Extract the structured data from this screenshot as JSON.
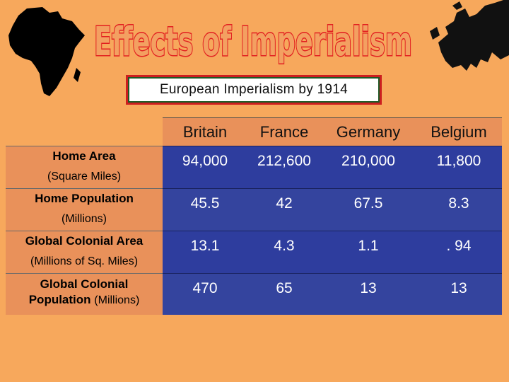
{
  "title": "Effects of Imperialism",
  "subtitle": "European Imperialism by 1914",
  "table": {
    "columns": [
      "Britain",
      "France",
      "Germany",
      "Belgium"
    ],
    "rows": [
      {
        "label_main": "Home Area",
        "label_sub": "(Square Miles)",
        "values": [
          "94,000",
          "212,600",
          "210,000",
          "11,800"
        ]
      },
      {
        "label_main": "Home Population",
        "label_sub": "(Millions)",
        "values": [
          "45.5",
          "42",
          "67.5",
          "8.3"
        ]
      },
      {
        "label_main": "Global Colonial Area",
        "label_sub": "(Millions of Sq. Miles)",
        "values": [
          "13.1",
          "4.3",
          "1.1",
          ". 94"
        ]
      },
      {
        "label_main": "Global Colonial",
        "label_main2": "Population",
        "label_sub": "(Millions)",
        "values": [
          "470",
          "65",
          "13",
          "13"
        ]
      }
    ]
  },
  "colors": {
    "background": "#f7a85c",
    "title_fill": "#f3a061",
    "title_stroke": "#e22020",
    "cell_blue": "#2e3d9e",
    "subtitle_border": "#cc1f1f",
    "subtitle_frame": "#1e5a26"
  },
  "icons": [
    "africa-map-icon",
    "europe-map-icon"
  ]
}
